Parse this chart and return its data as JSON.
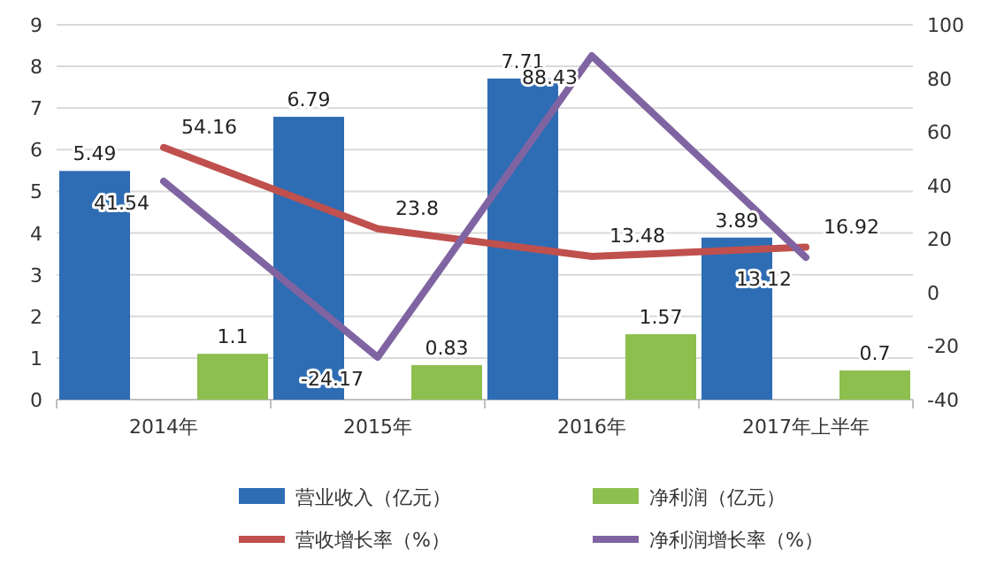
{
  "chart_data": {
    "type": "bar",
    "categories": [
      "2014年",
      "2015年",
      "2016年",
      "2017年上半年"
    ],
    "series": [
      {
        "name": "营业收入（亿元）",
        "color": "#2e6db4",
        "values": [
          5.49,
          6.79,
          7.71,
          3.89
        ]
      },
      {
        "name": "净利润（亿元）",
        "color": "#8dbf4e",
        "values": [
          1.1,
          0.83,
          1.57,
          0.7
        ]
      },
      {
        "name": "营收增长率（%）",
        "type": "line",
        "axis": "y2",
        "color": "#c0504d",
        "values": [
          54.16,
          23.8,
          13.48,
          16.92
        ]
      },
      {
        "name": "净利润增长率（%）",
        "type": "line",
        "axis": "y2",
        "color": "#8064a2",
        "values": [
          41.54,
          -24.17,
          88.43,
          13.12
        ]
      }
    ],
    "ylim": [
      0,
      9
    ],
    "yticks": [
      0,
      1,
      2,
      3,
      4,
      5,
      6,
      7,
      8,
      9
    ],
    "y2lim": [
      -40,
      100
    ],
    "y2ticks": [
      -40,
      -20,
      0,
      20,
      40,
      60,
      80,
      100
    ],
    "grid": "y",
    "legend": "bottom",
    "data_labels": true,
    "marker": "none"
  }
}
